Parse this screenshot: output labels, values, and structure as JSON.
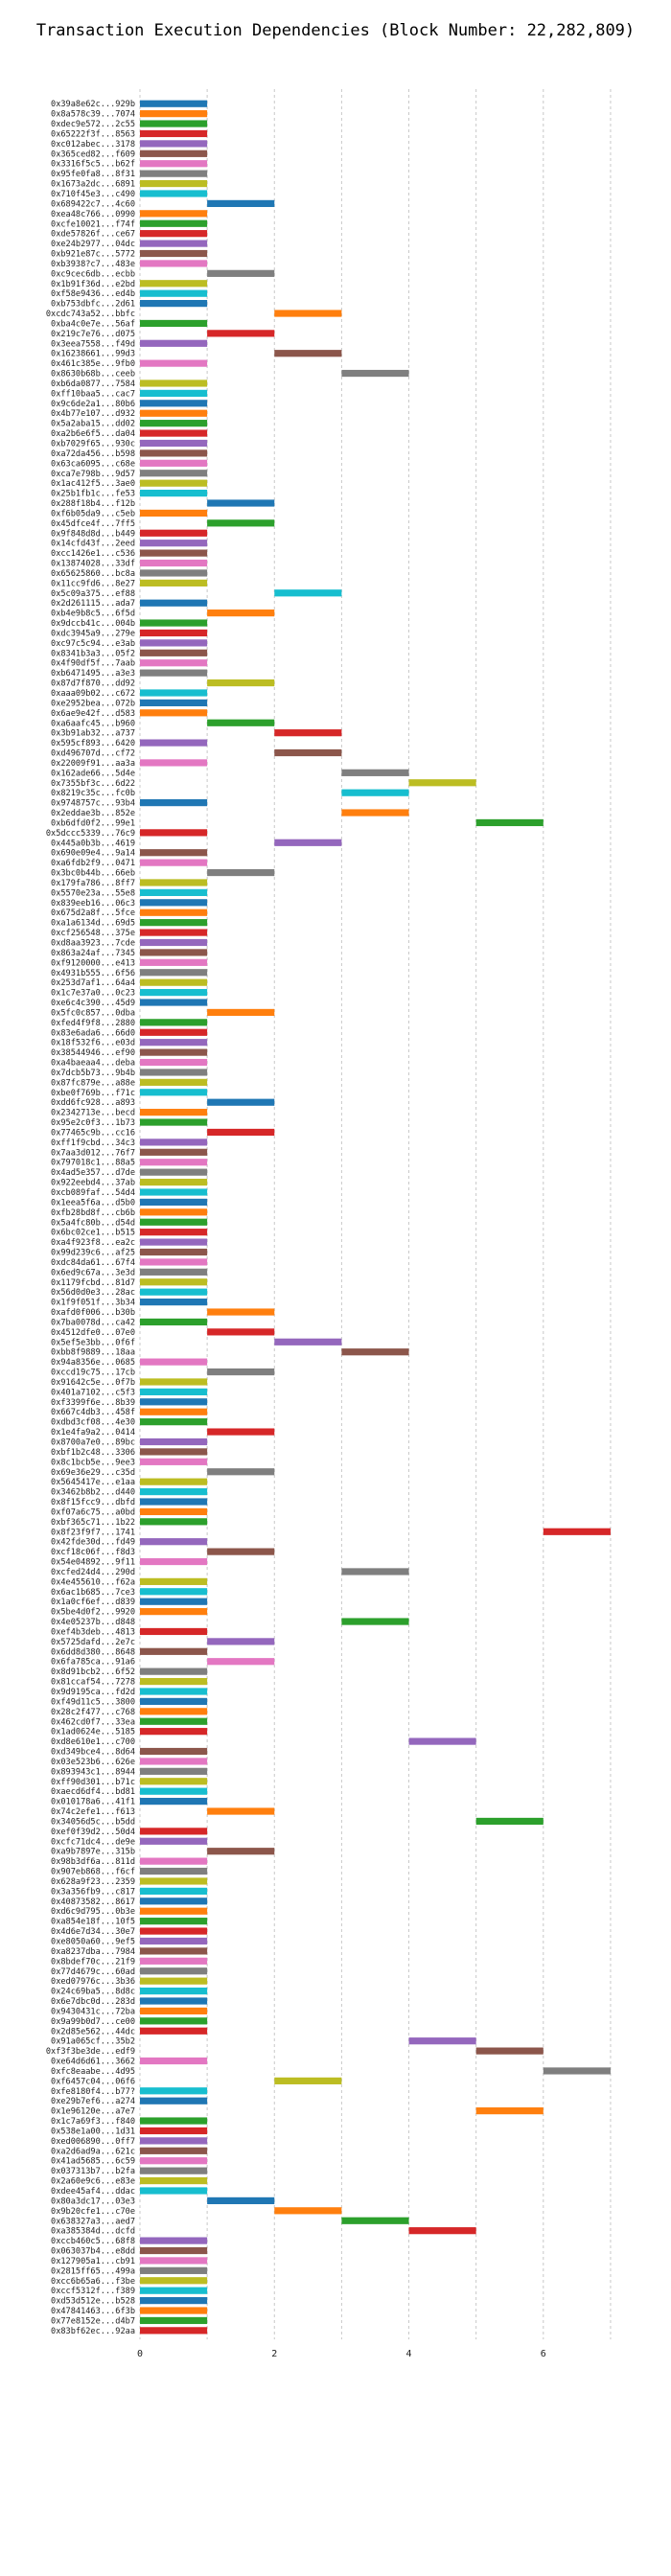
{
  "chart_data": {
    "type": "bar",
    "orientation": "horizontal",
    "title": "Transaction Execution Dependencies (Block Number: 22,282,809)",
    "xlabel": "",
    "ylabel": "",
    "xlim": [
      0,
      7.5
    ],
    "xticks": [
      0,
      2,
      4,
      6
    ],
    "grid": true,
    "legend": "none",
    "palette": [
      "#1f77b4",
      "#ff7f0e",
      "#2ca02c",
      "#d62728",
      "#9467bd",
      "#8c564b",
      "#e377c2",
      "#7f7f7f",
      "#bcbd22",
      "#17becf"
    ],
    "transactions": [
      {
        "label": "0x39a8e62c...929b",
        "start": 0
      },
      {
        "label": "0x8a578c39...7074",
        "start": 0
      },
      {
        "label": "0xdec9e572...2c55",
        "start": 0
      },
      {
        "label": "0x65222f3f...8563",
        "start": 0
      },
      {
        "label": "0xc012abec...3178",
        "start": 0
      },
      {
        "label": "0x365ced82...f609",
        "start": 0
      },
      {
        "label": "0x3316f5c5...b62f",
        "start": 0
      },
      {
        "label": "0x95fe0fa8...8f31",
        "start": 0
      },
      {
        "label": "0x1673a2dc...6891",
        "start": 0
      },
      {
        "label": "0x710f45e3...c490",
        "start": 0
      },
      {
        "label": "0x689422c7...4c60",
        "start": 1
      },
      {
        "label": "0xea48c766...0990",
        "start": 0
      },
      {
        "label": "0xcfe10021...f74f",
        "start": 0
      },
      {
        "label": "0xde57826f...ce67",
        "start": 0
      },
      {
        "label": "0xe24b2977...04dc",
        "start": 0
      },
      {
        "label": "0xb921e87c...5772",
        "start": 0
      },
      {
        "label": "0xb3938?c7...483e",
        "start": 0
      },
      {
        "label": "0xc9cec6db...ecbb",
        "start": 1
      },
      {
        "label": "0x1b91f36d...e2bd",
        "start": 0
      },
      {
        "label": "0xf58e9436...ed4b",
        "start": 0
      },
      {
        "label": "0xb753dbfc...2d61",
        "start": 0
      },
      {
        "label": "0xcdc743a52...bbfc",
        "start": 2
      },
      {
        "label": "0xba4c0e7e...56af",
        "start": 0
      },
      {
        "label": "0x219c7e76...d075",
        "start": 1
      },
      {
        "label": "0x3eea7558...f49d",
        "start": 0
      },
      {
        "label": "0x16238661...99d3",
        "start": 2
      },
      {
        "label": "0x461c385e...9fb0",
        "start": 0
      },
      {
        "label": "0x8630b68b...ceeb",
        "start": 3
      },
      {
        "label": "0xb6da0877...7584",
        "start": 0
      },
      {
        "label": "0xff10baa5...cac7",
        "start": 0
      },
      {
        "label": "0x9c6de2a1...80b6",
        "start": 0
      },
      {
        "label": "0x4b77e107...d932",
        "start": 0
      },
      {
        "label": "0x5a2aba15...dd02",
        "start": 0
      },
      {
        "label": "0xa2b6e6f5...da04",
        "start": 0
      },
      {
        "label": "0xb7029f65...930c",
        "start": 0
      },
      {
        "label": "0xa72da456...b598",
        "start": 0
      },
      {
        "label": "0x63ca6095...c68e",
        "start": 0
      },
      {
        "label": "0xca7e798b...9d57",
        "start": 0
      },
      {
        "label": "0x1ac412f5...3ae0",
        "start": 0
      },
      {
        "label": "0x25b1fb1c...fe53",
        "start": 0
      },
      {
        "label": "0x288f18b4...f12b",
        "start": 1
      },
      {
        "label": "0xf6b05da9...c5eb",
        "start": 0
      },
      {
        "label": "0x45dfce4f...7ff5",
        "start": 1
      },
      {
        "label": "0x9f848d8d...b449",
        "start": 0
      },
      {
        "label": "0x14cfd43f...2eed",
        "start": 0
      },
      {
        "label": "0xcc1426e1...c536",
        "start": 0
      },
      {
        "label": "0x13874028...33df",
        "start": 0
      },
      {
        "label": "0x65625860...bc8a",
        "start": 0
      },
      {
        "label": "0x11cc9fd6...8e27",
        "start": 0
      },
      {
        "label": "0x5c09a375...ef88",
        "start": 2
      },
      {
        "label": "0x2d261115...ada7",
        "start": 0
      },
      {
        "label": "0xb4e9b8c5...6f5d",
        "start": 1
      },
      {
        "label": "0x9dccb41c...004b",
        "start": 0
      },
      {
        "label": "0xdc3945a9...279e",
        "start": 0
      },
      {
        "label": "0xc97c5c94...e3ab",
        "start": 0
      },
      {
        "label": "0x8341b3a3...05f2",
        "start": 0
      },
      {
        "label": "0x4f90df5f...7aab",
        "start": 0
      },
      {
        "label": "0xb6471495...a3e3",
        "start": 0
      },
      {
        "label": "0x87d7f870...dd92",
        "start": 1
      },
      {
        "label": "0xaaa09b02...c672",
        "start": 0
      },
      {
        "label": "0xe2952bea...072b",
        "start": 0
      },
      {
        "label": "0x6ae9e42f...d583",
        "start": 0
      },
      {
        "label": "0xa6aafc45...b960",
        "start": 1
      },
      {
        "label": "0x3b91ab32...a737",
        "start": 2
      },
      {
        "label": "0x595cf893...6420",
        "start": 0
      },
      {
        "label": "0xd496707d...cf72",
        "start": 2
      },
      {
        "label": "0x22009f91...aa3a",
        "start": 0
      },
      {
        "label": "0x162ade66...5d4e",
        "start": 3
      },
      {
        "label": "0x7355bf3c...6d22",
        "start": 4
      },
      {
        "label": "0x8219c35c...fc0b",
        "start": 3
      },
      {
        "label": "0x9748757c...93b4",
        "start": 0
      },
      {
        "label": "0x2eddae3b...852e",
        "start": 3
      },
      {
        "label": "0xb6dfd0f2...99e1",
        "start": 5
      },
      {
        "label": "0x5dccc5339...76c9",
        "start": 0
      },
      {
        "label": "0x445a0b3b...4619",
        "start": 2
      },
      {
        "label": "0x690e09e4...9a14",
        "start": 0
      },
      {
        "label": "0xa6fdb2f9...0471",
        "start": 0
      },
      {
        "label": "0x3bc0b44b...66eb",
        "start": 1
      },
      {
        "label": "0x179fa786...8ff7",
        "start": 0
      },
      {
        "label": "0x5570e23a...55e8",
        "start": 0
      },
      {
        "label": "0x839eeb16...06c3",
        "start": 0
      },
      {
        "label": "0x675d2a8f...5fce",
        "start": 0
      },
      {
        "label": "0xa1a6134d...69d5",
        "start": 0
      },
      {
        "label": "0xcf256548...375e",
        "start": 0
      },
      {
        "label": "0xd8aa3923...7cde",
        "start": 0
      },
      {
        "label": "0x863a24af...7345",
        "start": 0
      },
      {
        "label": "0xf9120000...e413",
        "start": 0
      },
      {
        "label": "0x4931b555...6f56",
        "start": 0
      },
      {
        "label": "0x253d7af1...64a4",
        "start": 0
      },
      {
        "label": "0x1c7e37a0...0c23",
        "start": 0
      },
      {
        "label": "0xe6c4c390...45d9",
        "start": 0
      },
      {
        "label": "0x5fc0c857...0dba",
        "start": 1
      },
      {
        "label": "0xfed4f9f8...2880",
        "start": 0
      },
      {
        "label": "0x83e6ada6...66d0",
        "start": 0
      },
      {
        "label": "0x18f532f6...e03d",
        "start": 0
      },
      {
        "label": "0x38544946...ef90",
        "start": 0
      },
      {
        "label": "0xa4baeaa4...deba",
        "start": 0
      },
      {
        "label": "0x7dcb5b73...9b4b",
        "start": 0
      },
      {
        "label": "0x87fc879e...a88e",
        "start": 0
      },
      {
        "label": "0xbe0f769b...f71c",
        "start": 0
      },
      {
        "label": "0xdd6fc928...a893",
        "start": 1
      },
      {
        "label": "0x2342713e...becd",
        "start": 0
      },
      {
        "label": "0x95e2c0f3...1b73",
        "start": 0
      },
      {
        "label": "0x77465c9b...cc16",
        "start": 1
      },
      {
        "label": "0xff1f9cbd...34c3",
        "start": 0
      },
      {
        "label": "0x7aa3d012...76f7",
        "start": 0
      },
      {
        "label": "0x797018c1...88a5",
        "start": 0
      },
      {
        "label": "0x4ad5e357...d7de",
        "start": 0
      },
      {
        "label": "0x922eebd4...37ab",
        "start": 0
      },
      {
        "label": "0xcb089faf...54d4",
        "start": 0
      },
      {
        "label": "0x1eea5f6a...d5b0",
        "start": 0
      },
      {
        "label": "0xfb28bd8f...cb6b",
        "start": 0
      },
      {
        "label": "0x5a4fc80b...d54d",
        "start": 0
      },
      {
        "label": "0x6bc02ce1...b515",
        "start": 0
      },
      {
        "label": "0xa4f923f8...ea2c",
        "start": 0
      },
      {
        "label": "0x99d239c6...af25",
        "start": 0
      },
      {
        "label": "0xdc84da61...67f4",
        "start": 0
      },
      {
        "label": "0x6ed9c67a...3e3d",
        "start": 0
      },
      {
        "label": "0x1179fcbd...81d7",
        "start": 0
      },
      {
        "label": "0x56d0d0e3...28ac",
        "start": 0
      },
      {
        "label": "0x1f9f051f...3b34",
        "start": 0
      },
      {
        "label": "0xafd0f006...b30b",
        "start": 1
      },
      {
        "label": "0x7ba0078d...ca42",
        "start": 0
      },
      {
        "label": "0x4512dfe0...07e0",
        "start": 1
      },
      {
        "label": "0x5ef5e3bb...0f6f",
        "start": 2
      },
      {
        "label": "0xbb8f9889...18aa",
        "start": 3
      },
      {
        "label": "0x94a8356e...0685",
        "start": 0
      },
      {
        "label": "0xccd19c75...17cb",
        "start": 1
      },
      {
        "label": "0x91642c5e...0f7b",
        "start": 0
      },
      {
        "label": "0x401a7102...c5f3",
        "start": 0
      },
      {
        "label": "0xf3399f6e...8b39",
        "start": 0
      },
      {
        "label": "0x667c4db3...458f",
        "start": 0
      },
      {
        "label": "0xdbd3cf08...4e30",
        "start": 0
      },
      {
        "label": "0x1e4fa9a2...0414",
        "start": 1
      },
      {
        "label": "0x8700a7e0...89bc",
        "start": 0
      },
      {
        "label": "0xbf1b2c48...3306",
        "start": 0
      },
      {
        "label": "0x8c1bcb5e...9ee3",
        "start": 0
      },
      {
        "label": "0x69e36e29...c35d",
        "start": 1
      },
      {
        "label": "0x5645417e...e1aa",
        "start": 0
      },
      {
        "label": "0x3462b8b2...d440",
        "start": 0
      },
      {
        "label": "0x8f15fcc9...dbfd",
        "start": 0
      },
      {
        "label": "0xf07a6c75...a0bd",
        "start": 0
      },
      {
        "label": "0xbf365c71...1b22",
        "start": 0
      },
      {
        "label": "0x8f23f9f7...1741",
        "start": 6
      },
      {
        "label": "0x42fde30d...fd49",
        "start": 0
      },
      {
        "label": "0xcf18c06f...f8d3",
        "start": 1
      },
      {
        "label": "0x54e04892...9f11",
        "start": 0
      },
      {
        "label": "0xcfed24d4...290d",
        "start": 3
      },
      {
        "label": "0x4e455610...f62a",
        "start": 0
      },
      {
        "label": "0x6ac1b685...7ce3",
        "start": 0
      },
      {
        "label": "0x1a0cf6ef...d839",
        "start": 0
      },
      {
        "label": "0x5be4d0f2...9920",
        "start": 0
      },
      {
        "label": "0x4e05237b...d848",
        "start": 3
      },
      {
        "label": "0xef4b3deb...4813",
        "start": 0
      },
      {
        "label": "0x5725dafd...2e7c",
        "start": 1
      },
      {
        "label": "0x6dd8d380...8648",
        "start": 0
      },
      {
        "label": "0x6fa785ca...91a6",
        "start": 1
      },
      {
        "label": "0x8d91bcb2...6f52",
        "start": 0
      },
      {
        "label": "0x81ccaf54...7278",
        "start": 0
      },
      {
        "label": "0x9d9195ca...fd2d",
        "start": 0
      },
      {
        "label": "0xf49d11c5...3800",
        "start": 0
      },
      {
        "label": "0x28c2f477...c768",
        "start": 0
      },
      {
        "label": "0x462cd0f7...33ea",
        "start": 0
      },
      {
        "label": "0x1ad0624e...5185",
        "start": 0
      },
      {
        "label": "0xd8e610e1...c700",
        "start": 4
      },
      {
        "label": "0xd349bce4...8d64",
        "start": 0
      },
      {
        "label": "0x03e523b6...626e",
        "start": 0
      },
      {
        "label": "0x893943c1...8944",
        "start": 0
      },
      {
        "label": "0xff90d301...b71c",
        "start": 0
      },
      {
        "label": "0xaecd6df4...bd81",
        "start": 0
      },
      {
        "label": "0x010178a6...41f1",
        "start": 0
      },
      {
        "label": "0x74c2efe1...f613",
        "start": 1
      },
      {
        "label": "0x34056d5c...b5dd",
        "start": 5
      },
      {
        "label": "0xef0f39d2...50d4",
        "start": 0
      },
      {
        "label": "0xcfc71dc4...de9e",
        "start": 0
      },
      {
        "label": "0xa9b7897e...315b",
        "start": 1
      },
      {
        "label": "0x98b3df6a...811d",
        "start": 0
      },
      {
        "label": "0x907eb868...f6cf",
        "start": 0
      },
      {
        "label": "0x628a9f23...2359",
        "start": 0
      },
      {
        "label": "0x3a356fb9...c817",
        "start": 0
      },
      {
        "label": "0x40873582...8617",
        "start": 0
      },
      {
        "label": "0xd6c9d795...0b3e",
        "start": 0
      },
      {
        "label": "0xa854e18f...10f5",
        "start": 0
      },
      {
        "label": "0x4d6e7d34...30e7",
        "start": 0
      },
      {
        "label": "0xe8050a60...9ef5",
        "start": 0
      },
      {
        "label": "0xa8237dba...7984",
        "start": 0
      },
      {
        "label": "0x8bdef70c...21f9",
        "start": 0
      },
      {
        "label": "0x77d4679c...60ad",
        "start": 0
      },
      {
        "label": "0xed07976c...3b36",
        "start": 0
      },
      {
        "label": "0x24c69ba5...8d8c",
        "start": 0
      },
      {
        "label": "0x6e7dbc0d...283d",
        "start": 0
      },
      {
        "label": "0x9430431c...72ba",
        "start": 0
      },
      {
        "label": "0x9a99b0d7...ce00",
        "start": 0
      },
      {
        "label": "0x2d85e562...44dc",
        "start": 0
      },
      {
        "label": "0x91a065cf...35b2",
        "start": 4
      },
      {
        "label": "0xf3f3be3de...edf9",
        "start": 5
      },
      {
        "label": "0xe64d6d61...3662",
        "start": 0
      },
      {
        "label": "0xfc8eaabe...4d95",
        "start": 6
      },
      {
        "label": "0xf6457c04...06f6",
        "start": 2
      },
      {
        "label": "0xfe8180f4...b77?",
        "start": 0
      },
      {
        "label": "0xe29b7ef6...a274",
        "start": 0
      },
      {
        "label": "0x1e96120e...a7e7",
        "start": 5
      },
      {
        "label": "0x1c7a69f3...f840",
        "start": 0
      },
      {
        "label": "0x538e1a00...1d31",
        "start": 0
      },
      {
        "label": "0xed006890...0ff7",
        "start": 0
      },
      {
        "label": "0xa2d6ad9a...621c",
        "start": 0
      },
      {
        "label": "0x41ad5685...6c59",
        "start": 0
      },
      {
        "label": "0x037313b7...b2fa",
        "start": 0
      },
      {
        "label": "0x2a60e9c6...e83e",
        "start": 0
      },
      {
        "label": "0xdee45af4...ddac",
        "start": 0
      },
      {
        "label": "0x80a3dc17...03e3",
        "start": 1
      },
      {
        "label": "0x9b20cfe1...c70e",
        "start": 2
      },
      {
        "label": "0x638327a3...aed7",
        "start": 3
      },
      {
        "label": "0xa385384d...dcfd",
        "start": 4
      },
      {
        "label": "0xccb460c5...68f8",
        "start": 0
      },
      {
        "label": "0x063037b4...e8dd",
        "start": 0
      },
      {
        "label": "0x127905a1...cb91",
        "start": 0
      },
      {
        "label": "0x2815ff65...499a",
        "start": 0
      },
      {
        "label": "0xcc6b65a6...f3be",
        "start": 0
      },
      {
        "label": "0xccf5312f...f389",
        "start": 0
      },
      {
        "label": "0xd53d512e...b528",
        "start": 0
      },
      {
        "label": "0x47841463...6f3b",
        "start": 0
      },
      {
        "label": "0x77e8152e...d4b7",
        "start": 0
      },
      {
        "label": "0x83bf62ec...92aa",
        "start": 0
      }
    ]
  }
}
